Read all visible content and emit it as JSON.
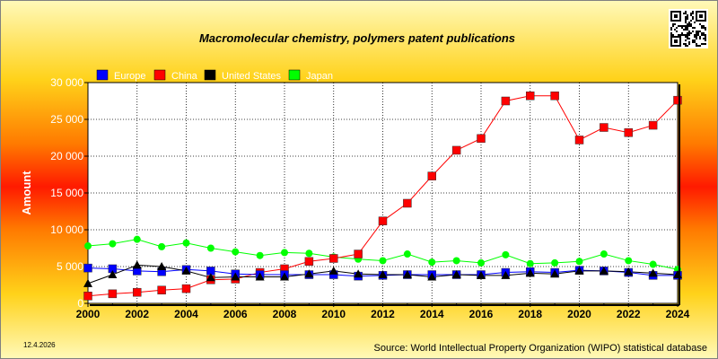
{
  "chart_data": {
    "type": "line",
    "title": "Macromolecular chemistry, polymers patent publications",
    "ylabel": "Amount",
    "xlabel": "",
    "x": [
      2000,
      2001,
      2002,
      2003,
      2004,
      2005,
      2006,
      2007,
      2008,
      2009,
      2010,
      2011,
      2012,
      2013,
      2014,
      2015,
      2016,
      2017,
      2018,
      2019,
      2020,
      2021,
      2022,
      2023,
      2024
    ],
    "xticks": [
      "2000",
      "2002",
      "2004",
      "2006",
      "2008",
      "2010",
      "2012",
      "2014",
      "2016",
      "2018",
      "2020",
      "2022",
      "2024"
    ],
    "yticks": [
      "0",
      "5 000",
      "10 000",
      "15 000",
      "20 000",
      "25 000",
      "30 000"
    ],
    "ylim": [
      0,
      30000
    ],
    "grid": true,
    "legend_position": "top",
    "series": [
      {
        "name": "Europe",
        "color": "#0000ff",
        "marker": "square",
        "values": [
          4800,
          4700,
          4400,
          4300,
          4600,
          4400,
          4000,
          3900,
          3900,
          3900,
          3900,
          3700,
          3800,
          3900,
          3900,
          3900,
          3900,
          4200,
          4300,
          4200,
          4500,
          4400,
          4200,
          3800,
          3800
        ]
      },
      {
        "name": "China",
        "color": "#ff0000",
        "marker": "square",
        "values": [
          1000,
          1300,
          1500,
          1800,
          2000,
          3200,
          3300,
          4200,
          4700,
          5700,
          6100,
          6700,
          11200,
          13600,
          17300,
          20800,
          22400,
          27500,
          28200,
          28200,
          22200,
          23900,
          23200,
          24200,
          27600
        ]
      },
      {
        "name": "United States",
        "color": "#000000",
        "marker": "triangle",
        "values": [
          2700,
          3900,
          5200,
          5000,
          4400,
          3500,
          3600,
          3600,
          3600,
          4000,
          4400,
          4000,
          3900,
          3900,
          3600,
          3900,
          3800,
          3800,
          4100,
          4000,
          4400,
          4400,
          4300,
          4100,
          3900
        ]
      },
      {
        "name": "Japan",
        "color": "#00ff00",
        "marker": "circle",
        "values": [
          7800,
          8100,
          8700,
          7700,
          8200,
          7500,
          7000,
          6500,
          6900,
          6800,
          6300,
          6000,
          5800,
          6700,
          5600,
          5800,
          5500,
          6600,
          5400,
          5500,
          5700,
          6700,
          5800,
          5300,
          4600
        ]
      }
    ]
  },
  "footer": {
    "date": "12.4.2026",
    "source": "Source: World Intellectual Property Organization (WIPO) statistical database"
  }
}
